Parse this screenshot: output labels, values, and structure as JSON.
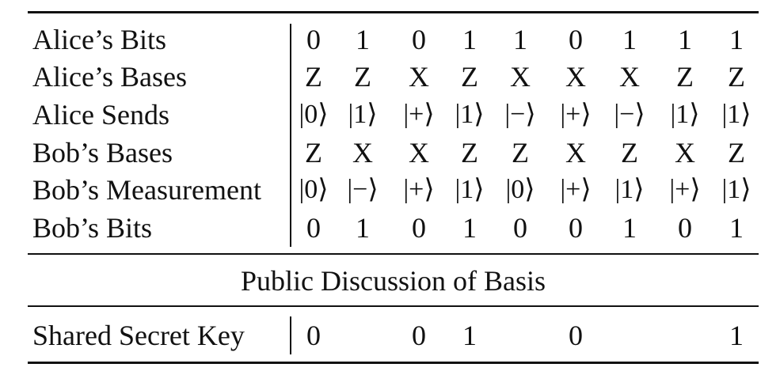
{
  "table": {
    "rows": [
      {
        "label": "Alice’s Bits",
        "cells": [
          "0",
          "1",
          "0",
          "1",
          "1",
          "0",
          "1",
          "1",
          "1"
        ]
      },
      {
        "label": "Alice’s Bases",
        "cells": [
          "Z",
          "Z",
          "X",
          "Z",
          "X",
          "X",
          "X",
          "Z",
          "Z"
        ]
      },
      {
        "label": "Alice Sends",
        "cells": [
          "|0⟩",
          "|1⟩",
          "|+⟩",
          "|1⟩",
          "|−⟩",
          "|+⟩",
          "|−⟩",
          "|1⟩",
          "|1⟩"
        ]
      },
      {
        "label": "Bob’s Bases",
        "cells": [
          "Z",
          "X",
          "X",
          "Z",
          "Z",
          "X",
          "Z",
          "X",
          "Z"
        ]
      },
      {
        "label": "Bob’s Measurement",
        "cells": [
          "|0⟩",
          "|−⟩",
          "|+⟩",
          "|1⟩",
          "|0⟩",
          "|+⟩",
          "|1⟩",
          "|+⟩",
          "|1⟩"
        ]
      },
      {
        "label": "Bob’s Bits",
        "cells": [
          "0",
          "1",
          "0",
          "1",
          "0",
          "0",
          "1",
          "0",
          "1"
        ]
      }
    ],
    "section_title": "Public Discussion of Basis",
    "key_row": {
      "label": "Shared Secret Key",
      "cells": [
        "0",
        "",
        "0",
        "1",
        "",
        "0",
        "",
        "",
        "1"
      ]
    }
  }
}
